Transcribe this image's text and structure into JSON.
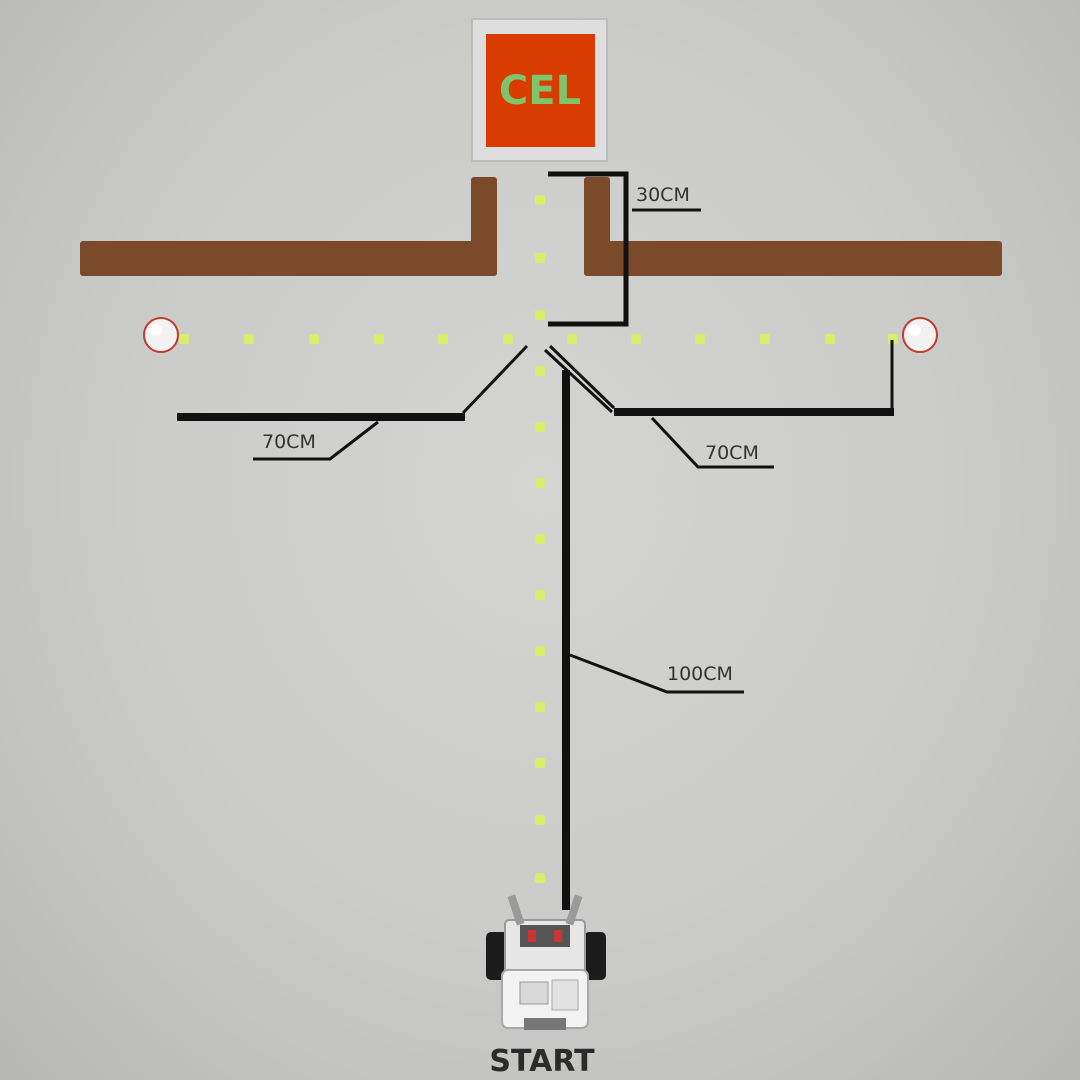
{
  "goal": {
    "label": "CEL",
    "fill_color": "#d83c00",
    "text_color": "#7fc36a"
  },
  "walls": {
    "color": "#7a4a2a"
  },
  "path_dots": {
    "color": "#d8ee6a"
  },
  "dimensions": {
    "top_segment": "30CM",
    "left_segment": "70CM",
    "right_segment": "70CM",
    "main_segment": "100CM"
  },
  "start": {
    "label": "START"
  }
}
